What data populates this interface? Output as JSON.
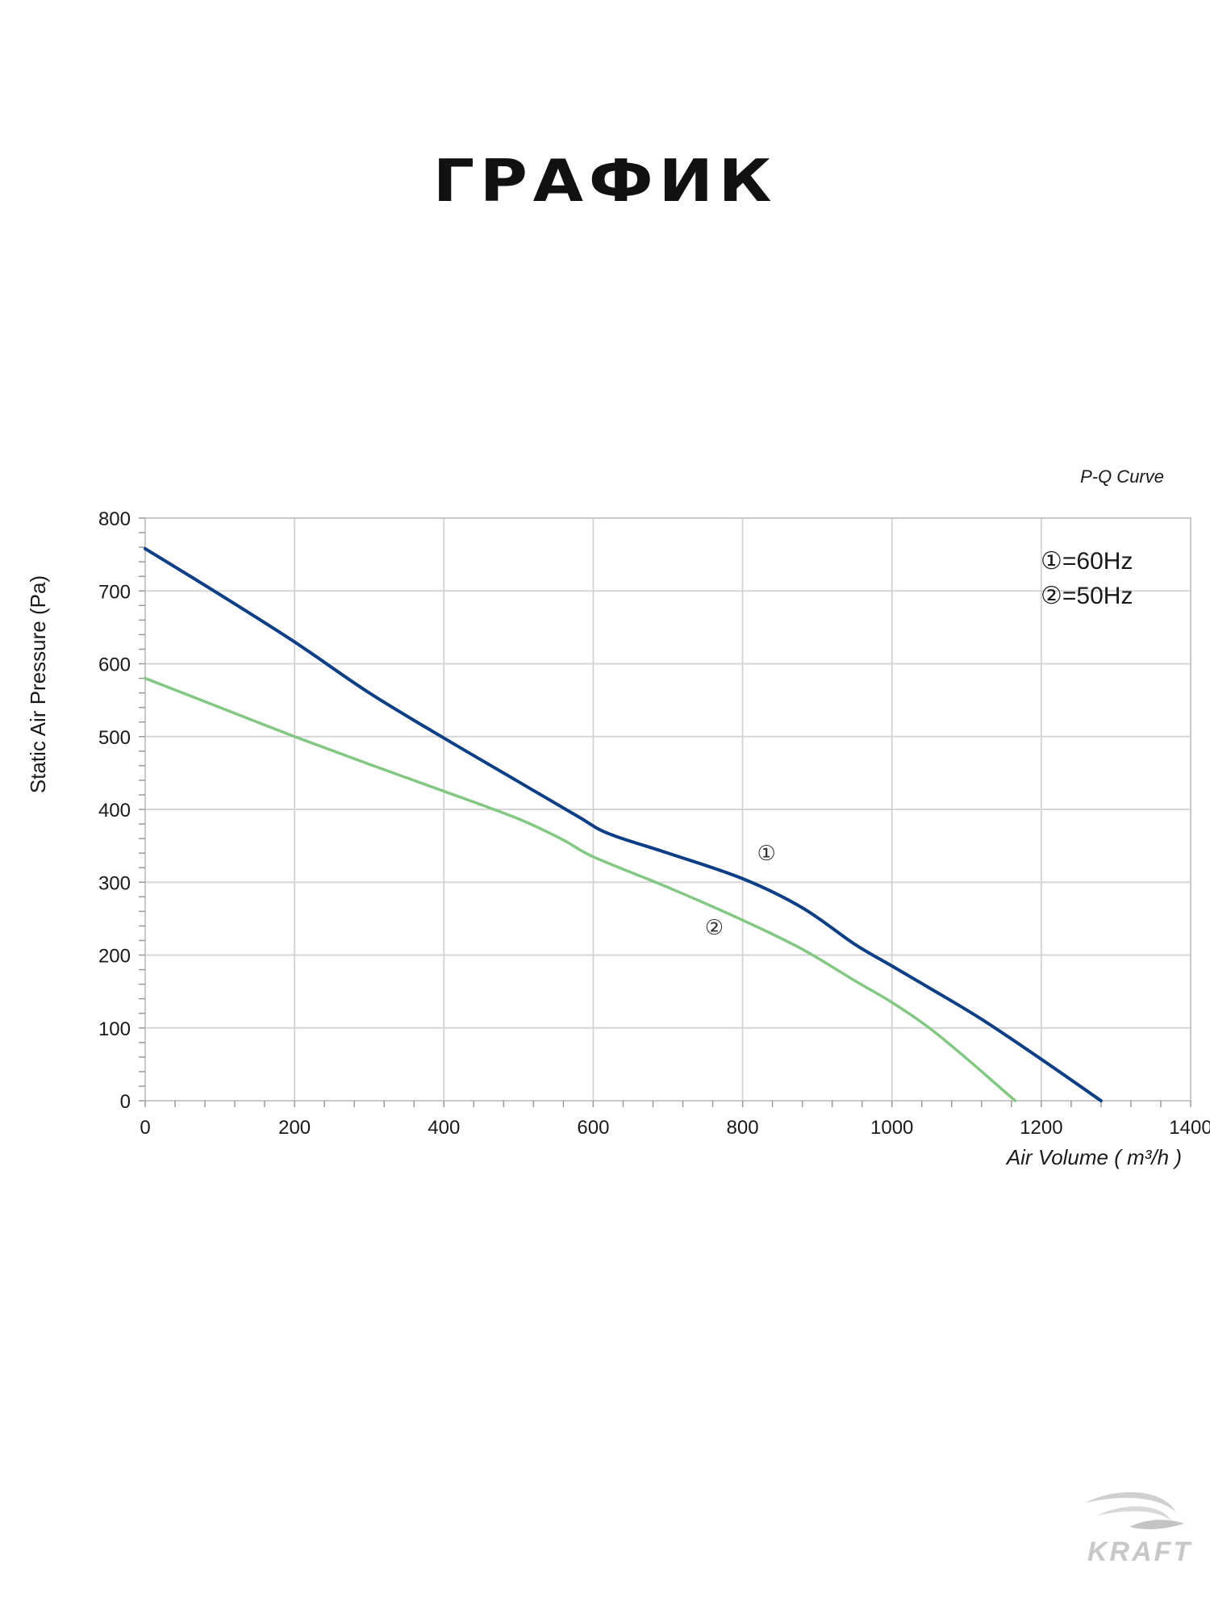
{
  "page": {
    "title": "ГРАФИК"
  },
  "brand": {
    "name": "KRAFT"
  },
  "chart_data": {
    "type": "line",
    "title": "P-Q Curve",
    "xlabel": "Air Volume ( m³/h )",
    "ylabel": "Static Air Pressure  (Pa)",
    "xlim": [
      0,
      1400
    ],
    "ylim": [
      0,
      800
    ],
    "xticks": [
      0,
      200,
      400,
      600,
      800,
      1000,
      1200,
      1400
    ],
    "yticks": [
      0,
      100,
      200,
      300,
      400,
      500,
      600,
      700,
      800
    ],
    "grid": true,
    "legend_position": "top-right",
    "legend": [
      "①=60Hz",
      "②=50Hz"
    ],
    "series": [
      {
        "name": "①=60Hz",
        "marker": "①",
        "color": "#0d3f86",
        "x": [
          0,
          100,
          200,
          300,
          400,
          500,
          580,
          620,
          700,
          800,
          880,
          950,
          1000,
          1050,
          1120,
          1200,
          1280
        ],
        "y": [
          758,
          695,
          630,
          560,
          498,
          438,
          390,
          367,
          340,
          305,
          265,
          215,
          185,
          155,
          112,
          57,
          0
        ]
      },
      {
        "name": "②=50Hz",
        "marker": "②",
        "color": "#82c882",
        "x": [
          0,
          100,
          200,
          300,
          400,
          500,
          560,
          600,
          700,
          800,
          880,
          950,
          1000,
          1050,
          1100,
          1165
        ],
        "y": [
          580,
          540,
          500,
          462,
          425,
          387,
          358,
          335,
          293,
          248,
          208,
          165,
          135,
          100,
          58,
          0
        ]
      }
    ],
    "annotations": [
      {
        "text": "①",
        "x": 832,
        "y": 340
      },
      {
        "text": "②",
        "x": 762,
        "y": 238
      }
    ]
  }
}
